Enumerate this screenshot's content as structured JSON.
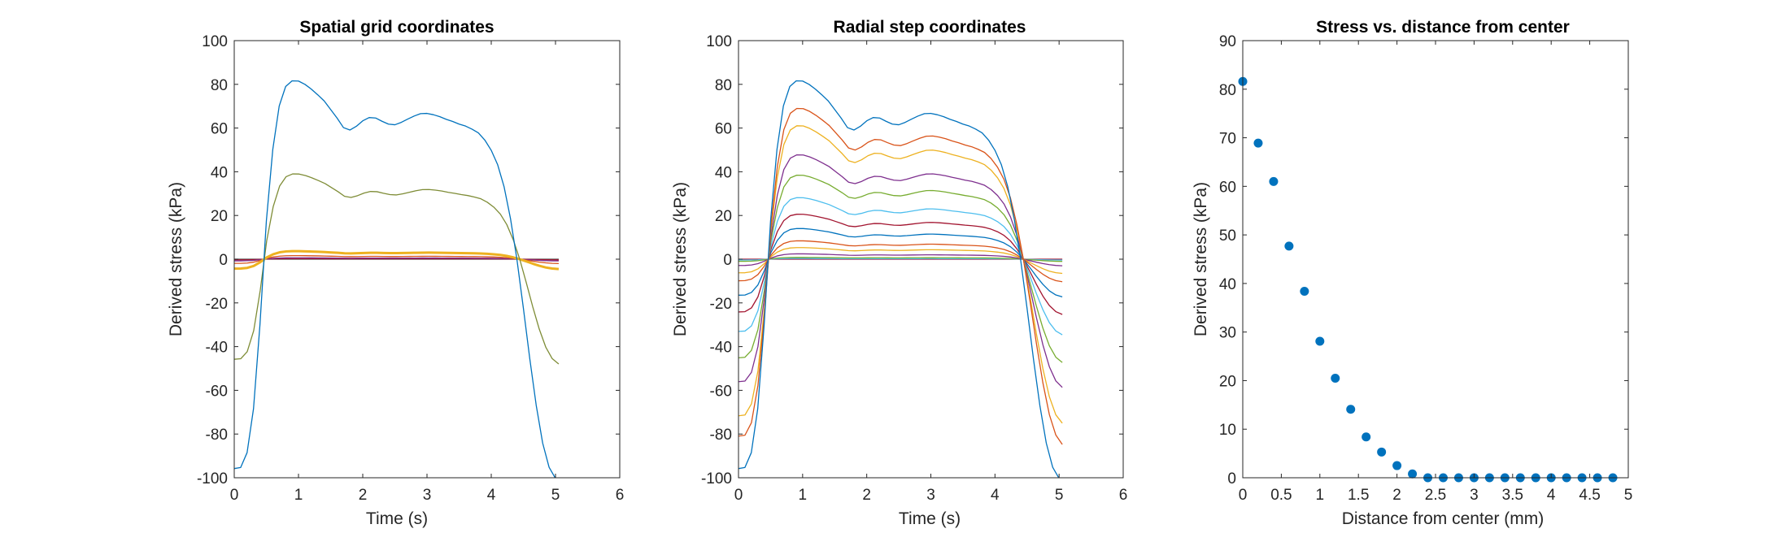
{
  "figure": {
    "background": "#ffffff"
  },
  "chart_data": [
    {
      "type": "line",
      "title": "Spatial grid coordinates",
      "xlabel": "Time (s)",
      "ylabel": "Derived stress (kPa)",
      "xlim": [
        0,
        6
      ],
      "ylim": [
        -100,
        100
      ],
      "xticks": [
        0,
        1,
        2,
        3,
        4,
        5,
        6
      ],
      "yticks": [
        -100,
        -80,
        -60,
        -40,
        -20,
        0,
        20,
        40,
        60,
        80,
        100
      ],
      "grid": false,
      "legend": "none",
      "profile_x": [
        0,
        0.1,
        0.2,
        0.3,
        0.4,
        0.5,
        0.6,
        0.7,
        0.8,
        0.9,
        1.0,
        1.1,
        1.2,
        1.3,
        1.4,
        1.5,
        1.6,
        1.7,
        1.8,
        1.9,
        2.0,
        2.1,
        2.2,
        2.3,
        2.4,
        2.5,
        2.6,
        2.7,
        2.8,
        2.9,
        3.0,
        3.1,
        3.2,
        3.3,
        3.4,
        3.5,
        3.6,
        3.7,
        3.8,
        3.9,
        4.0,
        4.1,
        4.2,
        4.3,
        4.4,
        4.5,
        4.6,
        4.7,
        4.8,
        4.9,
        5.0
      ],
      "profile": [
        -95.8,
        -95.3,
        -88.5,
        -68.4,
        -30.1,
        17.5,
        50.2,
        70.1,
        79.0,
        81.6,
        81.5,
        80.0,
        77.8,
        75.2,
        72.4,
        68.5,
        64.6,
        60.2,
        59.1,
        60.8,
        63.3,
        64.8,
        64.6,
        63.1,
        61.8,
        61.5,
        62.6,
        64.1,
        65.5,
        66.6,
        66.7,
        66.1,
        65.2,
        64.0,
        63.0,
        61.8,
        60.9,
        59.5,
        57.8,
        54.5,
        49.8,
        43.2,
        33.1,
        18.5,
        -0.2,
        -22.4,
        -45.6,
        -66.9,
        -84.1,
        -95.2,
        -100.3
      ],
      "series": [
        {
          "color": "#0072bd",
          "scale": 1.0,
          "end_time": 5.0
        },
        {
          "color": "#7e8c36",
          "scale": 0.478,
          "end_time": 5.05
        },
        {
          "color": "#edb120",
          "scale": 0.045,
          "end_time": 5.05
        },
        {
          "color": "#d95319",
          "scale": 0.02,
          "end_time": 5.05
        },
        {
          "color": "#7e2f8e",
          "scale": 0.008,
          "end_time": 5.05
        },
        {
          "color": "#a2142f",
          "scale": 0.003,
          "end_time": 5.05
        },
        {
          "color": "#4d4d4d",
          "scale": 0.0,
          "end_time": 5.05
        }
      ]
    },
    {
      "type": "line",
      "title": "Radial step coordinates",
      "xlabel": "Time (s)",
      "ylabel": "Derived stress (kPa)",
      "xlim": [
        0,
        6
      ],
      "ylim": [
        -100,
        100
      ],
      "xticks": [
        0,
        1,
        2,
        3,
        4,
        5,
        6
      ],
      "yticks": [
        -100,
        -80,
        -60,
        -40,
        -20,
        0,
        20,
        40,
        60,
        80,
        100
      ],
      "grid": false,
      "legend": "none",
      "series": [
        {
          "color": "#0072bd",
          "scale": 1.0,
          "end_time": 5.0
        },
        {
          "color": "#d95319",
          "scale": 0.845,
          "end_time": 5.05
        },
        {
          "color": "#edb120",
          "scale": 0.748,
          "end_time": 5.05
        },
        {
          "color": "#7e2f8e",
          "scale": 0.585,
          "end_time": 5.05
        },
        {
          "color": "#77ac30",
          "scale": 0.471,
          "end_time": 5.05
        },
        {
          "color": "#4dbeee",
          "scale": 0.345,
          "end_time": 5.05
        },
        {
          "color": "#a2142f",
          "scale": 0.252,
          "end_time": 5.05
        },
        {
          "color": "#0072bd",
          "scale": 0.172,
          "end_time": 5.05
        },
        {
          "color": "#d95319",
          "scale": 0.103,
          "end_time": 5.05
        },
        {
          "color": "#edb120",
          "scale": 0.065,
          "end_time": 5.05
        },
        {
          "color": "#7e2f8e",
          "scale": 0.03,
          "end_time": 5.05
        },
        {
          "color": "#77ac30",
          "scale": 0.01,
          "end_time": 5.05
        },
        {
          "color": "#4dbeee",
          "scale": 0.004,
          "end_time": 5.05
        },
        {
          "color": "#a2142f",
          "scale": 0.0,
          "end_time": 5.05
        }
      ]
    },
    {
      "type": "scatter",
      "title": "Stress vs. distance from center",
      "xlabel": "Distance from center (mm)",
      "ylabel": "Derived stress (kPa)",
      "xlim": [
        0,
        5
      ],
      "ylim": [
        0,
        90
      ],
      "xticks": [
        0,
        0.5,
        1,
        1.5,
        2,
        2.5,
        3,
        3.5,
        4,
        4.5,
        5
      ],
      "yticks": [
        0,
        10,
        20,
        30,
        40,
        50,
        60,
        70,
        80,
        90
      ],
      "grid": false,
      "legend": "none",
      "color": "#0072bd",
      "x": [
        0.0,
        0.2,
        0.4,
        0.6,
        0.8,
        1.0,
        1.2,
        1.4,
        1.6,
        1.8,
        2.0,
        2.2,
        2.4,
        2.6,
        2.8,
        3.0,
        3.2,
        3.4,
        3.6,
        3.8,
        4.0,
        4.2,
        4.4,
        4.6,
        4.8
      ],
      "y": [
        81.6,
        68.9,
        61.0,
        47.7,
        38.4,
        28.1,
        20.5,
        14.1,
        8.4,
        5.3,
        2.5,
        0.8,
        0.0,
        0.0,
        0.0,
        0.0,
        0.0,
        0.0,
        0.0,
        0.0,
        0.0,
        0.0,
        0.0,
        0.0,
        0.0
      ]
    }
  ]
}
